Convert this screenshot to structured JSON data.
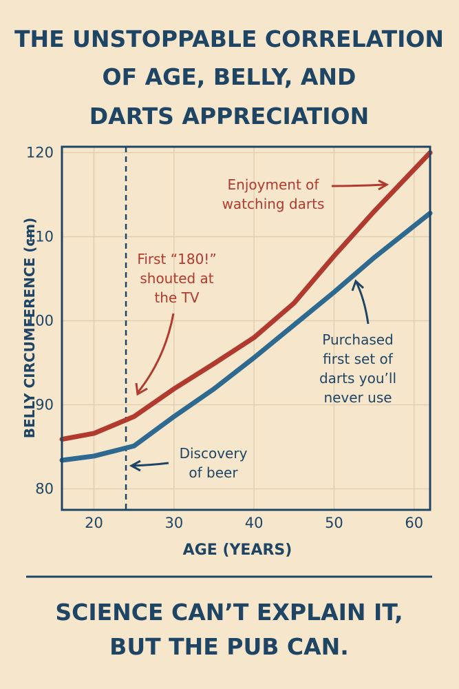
{
  "chart_data": {
    "type": "line",
    "title": [
      "THE UNSTOPPABLE CORRELATION",
      "OF AGE, BELLY, AND",
      "DARTS APPRECIATION"
    ],
    "x_label": "AGE (YEARS)",
    "y_label": "BELLY CIRCUMFERENCE (cm)",
    "x": [
      16,
      20,
      25,
      30,
      35,
      40,
      45,
      50,
      55,
      62
    ],
    "series": [
      {
        "color": "#b03a2e",
        "values": [
          85.9,
          86.6,
          88.6,
          91.9,
          94.9,
          98.0,
          102.1,
          107.7,
          113.0,
          120.0
        ]
      },
      {
        "color": "#2e6a8f",
        "values": [
          83.4,
          83.9,
          85.1,
          88.6,
          91.9,
          95.6,
          99.5,
          103.4,
          107.5,
          112.8
        ]
      }
    ],
    "xlim": [
      16,
      62
    ],
    "ylim": [
      77.5,
      120.7
    ],
    "xticks": [
      20,
      30,
      40,
      50,
      60
    ],
    "yticks": [
      120,
      110,
      100,
      90,
      80
    ],
    "grid": true,
    "marker_x": 24,
    "annotations": [
      [
        "Enjoyment of",
        "watching darts"
      ],
      [
        "First “180!”",
        "shouted at",
        "the TV"
      ],
      [
        "Purchased",
        "first set of",
        "darts you’ll",
        "never use"
      ],
      [
        "Discovery",
        "of beer"
      ]
    ],
    "caption": [
      "SCIENCE CAN’T EXPLAIN IT,",
      "BUT THE PUB CAN."
    ]
  }
}
